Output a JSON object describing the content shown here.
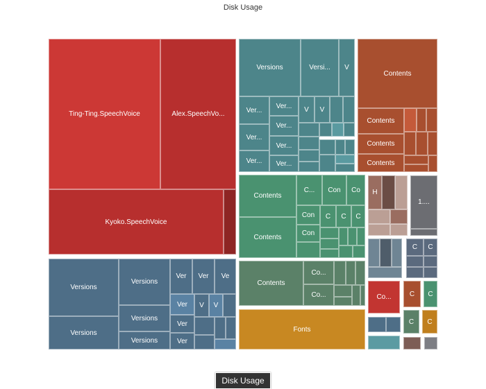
{
  "chart_data": {
    "type": "treemap",
    "title": "Disk Usage",
    "labels": [
      "Ting-Ting.SpeechVoice",
      "Alex.SpeechVo...",
      "Kyoko.SpeechVoice",
      "Versions",
      "Versions",
      "Versions",
      "Versions",
      "Versions",
      "Ver",
      "Ver",
      "Ve",
      "Ver",
      "V",
      "V",
      "Ver",
      "Ver",
      "Versions",
      "Versi...",
      "V",
      "Ver...",
      "Ver...",
      "Ver...",
      "Ver...",
      "Ver...",
      "Ver...",
      "Ver...",
      "V",
      "V",
      "Contents",
      "Contents",
      "Contents",
      "Contents",
      "Contents",
      "Contents",
      "C...",
      "Con",
      "Co",
      "Con",
      "C",
      "C",
      "C",
      "Con",
      "Contents",
      "Co...",
      "Co...",
      "Fonts",
      "H",
      "1....",
      "C",
      "C",
      "Co...",
      "C",
      "C",
      "C",
      "C"
    ],
    "colors": {
      "red": "#cc3835",
      "red2": "#b72f2e",
      "red3": "#8e2524",
      "slate": "#4e6e87",
      "slateL": "#5a82a3",
      "teal": "#4d858a",
      "tealL": "#5a9aa0",
      "rust": "#a84f2f",
      "rustL": "#c45a3a",
      "green": "#4a9270",
      "sage": "#5b8168",
      "gold": "#c88822",
      "gold2": "#c07f1e",
      "brown": "#9a6d60",
      "brownD": "#6b4d45",
      "brownL": "#bb9f95",
      "gray": "#6c6d72",
      "steel": "#6f8594",
      "steelD": "#4f5d6a",
      "navy": "#5b6a7e",
      "crimson": "#c23531",
      "aqua": "#5b9ba2",
      "mocha": "#7d5d55",
      "ash": "#7d7e84"
    }
  },
  "breadcrumb": {
    "root": "Disk Usage"
  }
}
